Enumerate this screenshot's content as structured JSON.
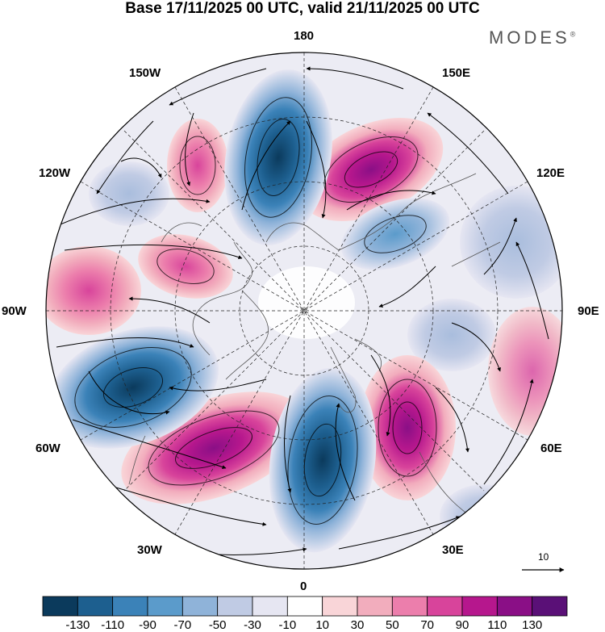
{
  "header": {
    "title": "Base 17/11/2025 00 UTC, valid 21/11/2025 00 UTC",
    "brand": "MODES",
    "brand_mark": "®"
  },
  "map": {
    "projection": "north polar stereographic",
    "longitude_labels": {
      "top": "180",
      "upper_left": "150W",
      "upper_right": "150E",
      "left_upper": "120W",
      "right_upper": "120E",
      "left_mid": "90W",
      "right_mid": "90E",
      "left_lower": "60W",
      "right_lower": "60E",
      "lower_left": "30W",
      "lower_right": "30E",
      "bottom": "0"
    },
    "reference_vector": "10"
  },
  "colorbar": {
    "levels": [
      "-130",
      "-110",
      "-90",
      "-70",
      "-50",
      "-30",
      "-10",
      "10",
      "30",
      "50",
      "70",
      "90",
      "110",
      "130"
    ],
    "colors": [
      "#0b3a5c",
      "#1d5f8f",
      "#3b82b8",
      "#5b9bcb",
      "#8fb3d9",
      "#c0cbe4",
      "#e6e6f2",
      "#ffffff",
      "#f9d5d8",
      "#f2adbd",
      "#ec7eac",
      "#d8449b",
      "#b6178d",
      "#8a0f86",
      "#5a1077"
    ]
  },
  "colors": {
    "text": "#000000",
    "brand": "#555555"
  }
}
